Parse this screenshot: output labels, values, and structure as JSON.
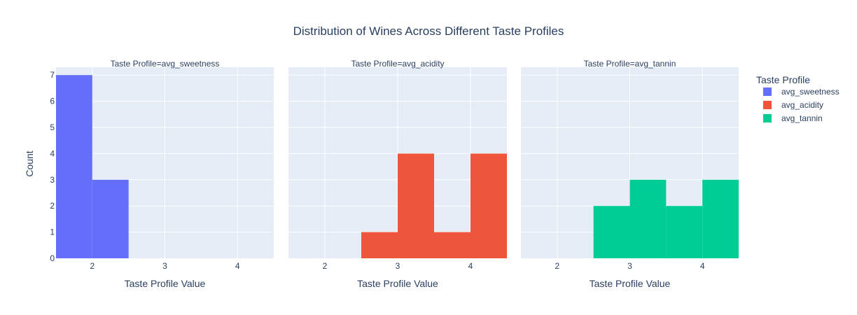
{
  "chart_data": {
    "type": "bar",
    "title": "Distribution of Wines Across Different Taste Profiles",
    "xlabel": "Taste Profile Value",
    "ylabel": "Count",
    "ylim": [
      0,
      7.3
    ],
    "xlim": [
      1.5,
      4.5
    ],
    "x_ticks": [
      2,
      3,
      4
    ],
    "y_ticks": [
      0,
      1,
      2,
      3,
      4,
      5,
      6,
      7
    ],
    "bin_width": 0.5,
    "legend": {
      "title": "Taste Profile",
      "placement": "top-right"
    },
    "facets": [
      {
        "title": "Taste Profile=avg_sweetness",
        "series": "avg_sweetness",
        "color": "#636efa",
        "bins": [
          {
            "x0": 1.5,
            "x1": 2.0,
            "count": 7
          },
          {
            "x0": 2.0,
            "x1": 2.5,
            "count": 3
          }
        ]
      },
      {
        "title": "Taste Profile=avg_acidity",
        "series": "avg_acidity",
        "color": "#ef553b",
        "bins": [
          {
            "x0": 2.5,
            "x1": 3.0,
            "count": 1
          },
          {
            "x0": 3.0,
            "x1": 3.5,
            "count": 4
          },
          {
            "x0": 3.5,
            "x1": 4.0,
            "count": 1
          },
          {
            "x0": 4.0,
            "x1": 4.5,
            "count": 4
          }
        ]
      },
      {
        "title": "Taste Profile=avg_tannin",
        "series": "avg_tannin",
        "color": "#00cc96",
        "bins": [
          {
            "x0": 2.5,
            "x1": 3.0,
            "count": 2
          },
          {
            "x0": 3.0,
            "x1": 3.5,
            "count": 3
          },
          {
            "x0": 3.5,
            "x1": 4.0,
            "count": 2
          },
          {
            "x0": 4.0,
            "x1": 4.5,
            "count": 3
          }
        ]
      }
    ],
    "series": [
      {
        "name": "avg_sweetness",
        "color": "#636efa"
      },
      {
        "name": "avg_acidity",
        "color": "#ef553b"
      },
      {
        "name": "avg_tannin",
        "color": "#00cc96"
      }
    ],
    "plot_background": "#e5ecf6",
    "grid": true
  }
}
